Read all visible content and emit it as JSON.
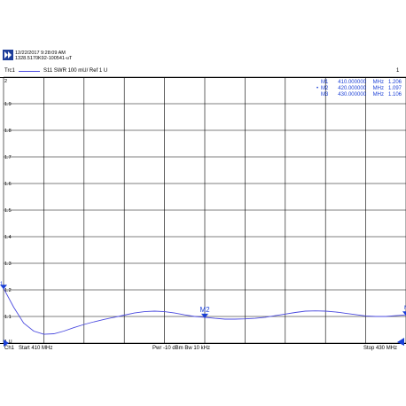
{
  "header": {
    "datetime": "12/22/2017 9:28:09 AM",
    "device_id": "1328.5170K92-100541-uT"
  },
  "trace": {
    "label": "Trc1",
    "measurement": "S11  SWR  100 mU/ Ref 1 U",
    "channel_number": "1"
  },
  "markers": [
    {
      "name": "M1",
      "prefix": " ",
      "freq": "410.000000",
      "freq_unit": "MHz",
      "value": "1.206",
      "value_unit": "U"
    },
    {
      "name": "M2",
      "prefix": "•",
      "freq": "420.000000",
      "freq_unit": "MHz",
      "value": "1.097",
      "value_unit": "U"
    },
    {
      "name": "M3",
      "prefix": " ",
      "freq": "430.000000",
      "freq_unit": "MHz",
      "value": "1.106",
      "value_unit": "U"
    }
  ],
  "footer": {
    "channel": "Ch1",
    "start": "Start  410 MHz",
    "power": "Pwr  -10 dBm  Bw  10 kHz",
    "stop": "Stop  430 MHz"
  },
  "colors": {
    "trace": "#4a4adf",
    "marker": "#1a3fd6",
    "grid": "#000000"
  },
  "chart_data": {
    "type": "line",
    "title": "",
    "xlabel": "",
    "ylabel": "",
    "xlim": [
      410,
      430
    ],
    "ylim": [
      1.0,
      2.0
    ],
    "grid": true,
    "ytick_labels": [
      "2",
      "1.9",
      "1.8",
      "1.7",
      "1.6",
      "1.5",
      "1.4",
      "1.3",
      "1.2",
      "1.1",
      "1 U"
    ],
    "ref_marker": "1",
    "series": [
      {
        "x": [
          410,
          410.5,
          411,
          411.5,
          412,
          412.5,
          413,
          413.5,
          414,
          414.5,
          415,
          415.5,
          416,
          416.5,
          417,
          417.5,
          418,
          418.5,
          419,
          419.5,
          420,
          420.5,
          421,
          421.5,
          422,
          422.5,
          423,
          423.5,
          424,
          424.5,
          425,
          425.5,
          426,
          426.5,
          427,
          427.5,
          428,
          428.5,
          429,
          429.5,
          430
        ],
        "y": [
          1.206,
          1.135,
          1.075,
          1.045,
          1.033,
          1.035,
          1.045,
          1.058,
          1.07,
          1.08,
          1.089,
          1.097,
          1.105,
          1.113,
          1.118,
          1.12,
          1.118,
          1.113,
          1.106,
          1.1,
          1.097,
          1.093,
          1.09,
          1.09,
          1.091,
          1.093,
          1.097,
          1.103,
          1.109,
          1.115,
          1.12,
          1.121,
          1.12,
          1.117,
          1.112,
          1.107,
          1.102,
          1.1,
          1.1,
          1.103,
          1.106
        ]
      }
    ],
    "marker_points": [
      {
        "label": "M1",
        "x": 410,
        "y": 1.206
      },
      {
        "label": "M2",
        "x": 420,
        "y": 1.097
      },
      {
        "label": "M3",
        "x": 430,
        "y": 1.106
      }
    ]
  }
}
